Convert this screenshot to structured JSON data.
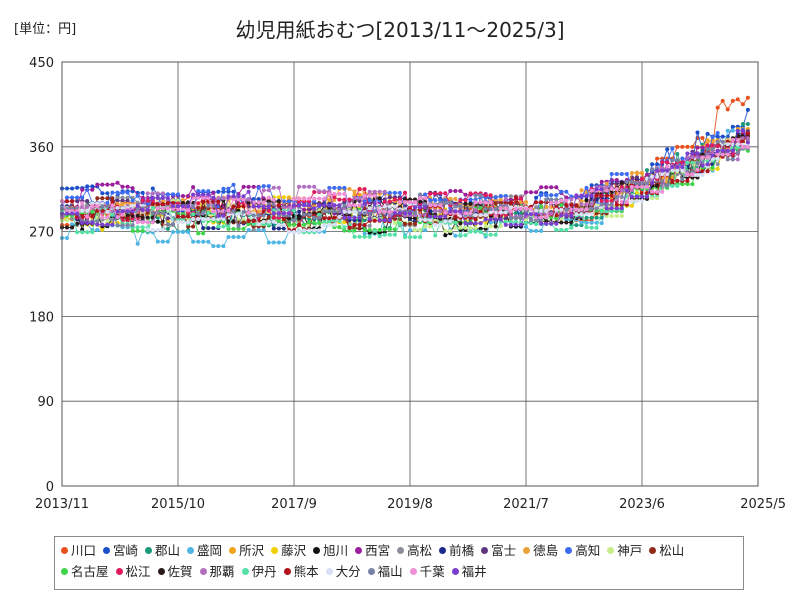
{
  "header": {
    "unit_label": "[単位：円]",
    "title": "幼児用紙おむつ[2013/11～2025/3]"
  },
  "chart_data": {
    "type": "line",
    "title": "幼児用紙おむつ[2013/11～2025/3]",
    "unit": "[単位：円]",
    "x_start": "2013-11",
    "x_end": "2025-05",
    "x_ticks": [
      "2013/11",
      "2015/10",
      "2017/9",
      "2019/8",
      "2021/7",
      "2023/6",
      "2025/5"
    ],
    "y_ticks": [
      0,
      90,
      180,
      270,
      360,
      450
    ],
    "ylim": [
      0,
      450
    ],
    "grid": true,
    "legend_position": "bottom",
    "series": [
      {
        "name": "川口",
        "color": "#e8511d",
        "start": 290,
        "end": 395,
        "peak": 412
      },
      {
        "name": "宮崎",
        "color": "#1b4fc9",
        "start": 300,
        "end": 392
      },
      {
        "name": "郡山",
        "color": "#1a9a7a",
        "start": 285,
        "end": 385
      },
      {
        "name": "盛岡",
        "color": "#4fb6e3",
        "start": 272,
        "end": 380
      },
      {
        "name": "所沢",
        "color": "#f2a21b",
        "start": 295,
        "end": 378
      },
      {
        "name": "藤沢",
        "color": "#f0d000",
        "start": 288,
        "end": 372
      },
      {
        "name": "旭川",
        "color": "#111111",
        "start": 285,
        "end": 376
      },
      {
        "name": "西宮",
        "color": "#9b1f9b",
        "start": 305,
        "end": 370
      },
      {
        "name": "高松",
        "color": "#8a8f99",
        "start": 290,
        "end": 368
      },
      {
        "name": "前橋",
        "color": "#1a2a8c",
        "start": 288,
        "end": 374
      },
      {
        "name": "富士",
        "color": "#5c3480",
        "start": 296,
        "end": 366
      },
      {
        "name": "徳島",
        "color": "#eda13a",
        "start": 299,
        "end": 371
      },
      {
        "name": "高知",
        "color": "#3c6cf0",
        "start": 303,
        "end": 382
      },
      {
        "name": "神戸",
        "color": "#c7ee8a",
        "start": 286,
        "end": 364
      },
      {
        "name": "松山",
        "color": "#8f2a1a",
        "start": 287,
        "end": 368
      },
      {
        "name": "名古屋",
        "color": "#3fd44a",
        "start": 283,
        "end": 365
      },
      {
        "name": "松江",
        "color": "#e01a5c",
        "start": 298,
        "end": 372
      },
      {
        "name": "佐賀",
        "color": "#2a1a1a",
        "start": 291,
        "end": 370
      },
      {
        "name": "那覇",
        "color": "#b36fbf",
        "start": 301,
        "end": 362
      },
      {
        "name": "伊丹",
        "color": "#55e0a6",
        "start": 279,
        "end": 366
      },
      {
        "name": "熊本",
        "color": "#b0131a",
        "start": 289,
        "end": 369
      },
      {
        "name": "大分",
        "color": "#d9e0f5",
        "start": 284,
        "end": 363
      },
      {
        "name": "福山",
        "color": "#7a82a6",
        "start": 293,
        "end": 367
      },
      {
        "name": "千葉",
        "color": "#f08ed6",
        "start": 297,
        "end": 364
      },
      {
        "name": "福井",
        "color": "#7a3fcf",
        "start": 294,
        "end": 373
      }
    ]
  }
}
